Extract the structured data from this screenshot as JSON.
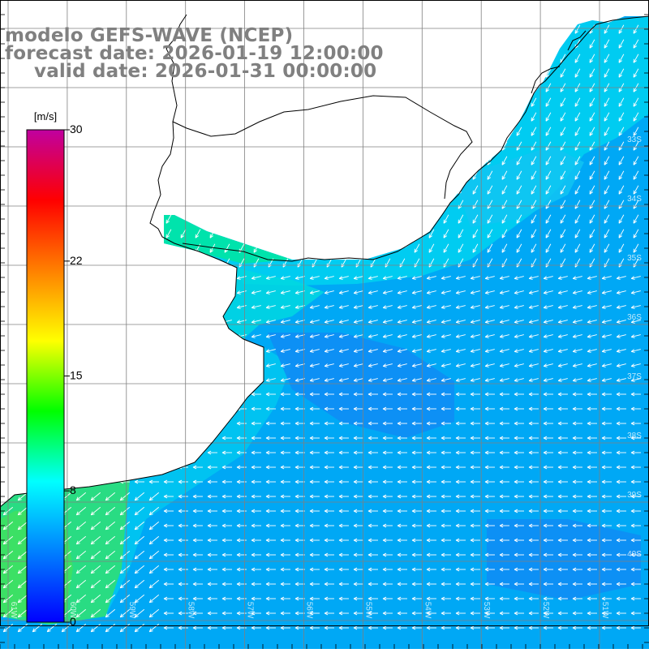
{
  "title": {
    "line1": "modelo GEFS-WAVE (NCEP)",
    "line2": "forecast date: 2026-01-19 12:00:00",
    "line3": "valid date: 2026-01-31 00:00:00"
  },
  "colorbar": {
    "unit": "[m/s]",
    "ticks": [
      "30",
      "22",
      "15",
      "8",
      "0"
    ],
    "tick_values": [
      30,
      22,
      15,
      8,
      0
    ],
    "min": 0,
    "max": 30,
    "colors": [
      "#0000ff",
      "#0080ff",
      "#00ffff",
      "#00ff00",
      "#ffff00",
      "#ff8000",
      "#ff0000",
      "#c000a0"
    ]
  },
  "map": {
    "lat_labels": [
      "33S",
      "34S",
      "35S",
      "36S",
      "37S",
      "38S",
      "39S",
      "40S"
    ],
    "lon_labels": [
      "61W",
      "60W",
      "59W",
      "58W",
      "57W",
      "56W",
      "55W",
      "54W",
      "53W",
      "52W",
      "51W"
    ],
    "colors": {
      "land": "#ffffff",
      "coast": "#000000",
      "grid": "#808080",
      "arrows": "#ffffff",
      "nearshore": "#00e6a0",
      "shelf": "#00d2f0",
      "open_ocean": "#00a8f5",
      "deep": "#0f8cf5",
      "southwest": "#30e070"
    },
    "wind_field": {
      "description": "wind speed field over ocean",
      "units": "m/s",
      "speed_range": [
        4,
        10
      ],
      "dominant_direction": "from east / northeast"
    }
  }
}
